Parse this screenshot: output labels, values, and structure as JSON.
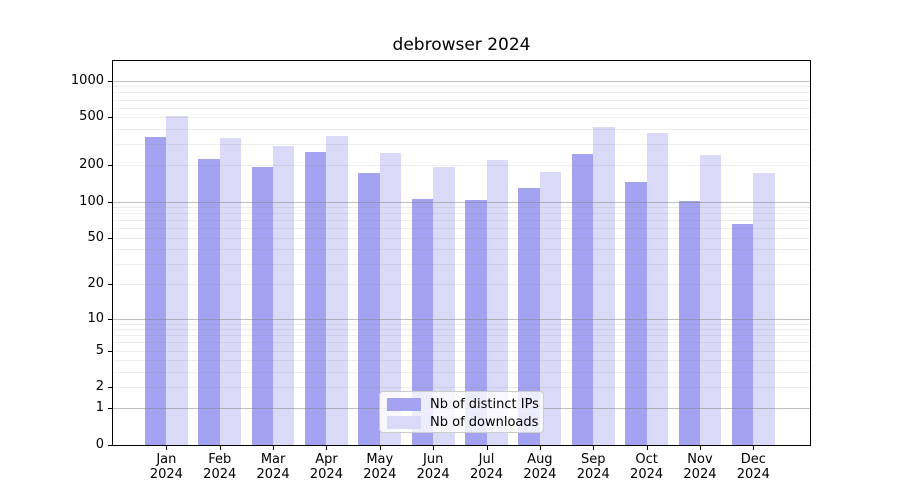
{
  "chart_data": {
    "type": "bar",
    "title": "debrowser 2024",
    "categories": [
      "Jan",
      "Feb",
      "Mar",
      "Apr",
      "May",
      "Jun",
      "Jul",
      "Aug",
      "Sep",
      "Oct",
      "Nov",
      "Dec"
    ],
    "category_year": "2024",
    "series": [
      {
        "name": "Nb of distinct IPs",
        "color": "#a3a3f2",
        "values": [
          341,
          224,
          193,
          257,
          172,
          105,
          103,
          131,
          250,
          147,
          102,
          65
        ]
      },
      {
        "name": "Nb of downloads",
        "color": "#dadaf8",
        "values": [
          510,
          337,
          289,
          352,
          252,
          195,
          220,
          177,
          412,
          370,
          244,
          174
        ]
      }
    ],
    "yscale": "log1p",
    "ylim": [
      0,
      1450
    ],
    "y_tick_labels": [
      "1000",
      "500",
      "200",
      "100",
      "50",
      "20",
      "10",
      "5",
      "2",
      "1",
      "0"
    ],
    "y_tick_values": [
      1000,
      500,
      200,
      100,
      50,
      20,
      10,
      5,
      2,
      1,
      0
    ],
    "grid": true,
    "grid_major_values": [
      1,
      10,
      100,
      1000
    ],
    "grid_minor_values": [
      2,
      3,
      4,
      5,
      6,
      7,
      8,
      9,
      20,
      30,
      40,
      50,
      60,
      70,
      80,
      90,
      200,
      300,
      400,
      500,
      600,
      700,
      800,
      900
    ],
    "legend_position": "lower center",
    "colors": {
      "grid_major": "rgba(128,128,128,0.50)",
      "grid_minor": "rgba(128,128,128,0.14)",
      "axis": "#000000"
    }
  }
}
